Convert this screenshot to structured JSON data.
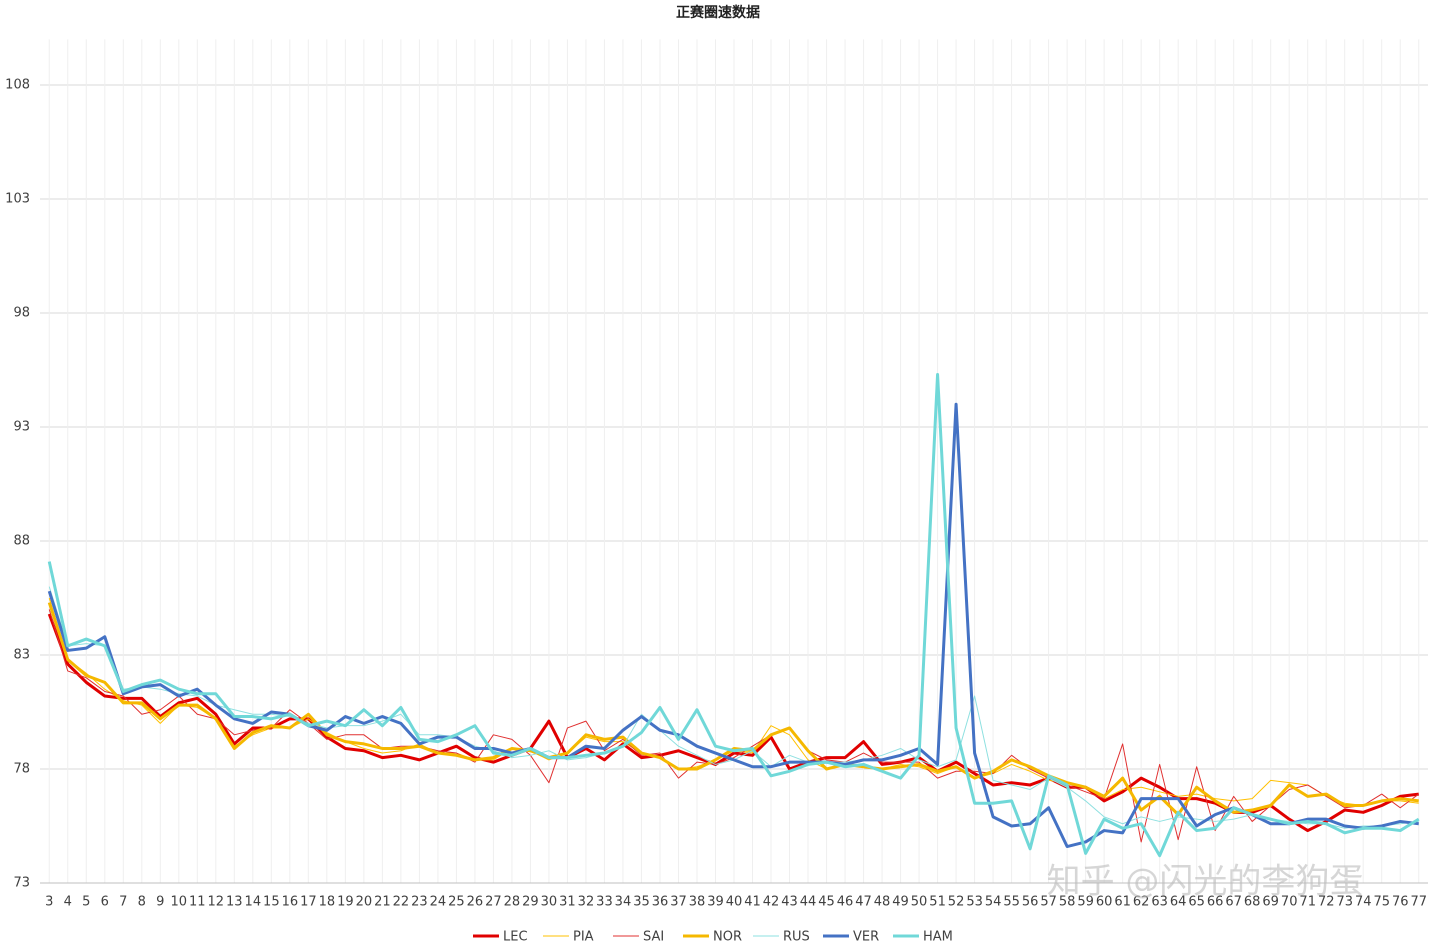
{
  "chart_data": {
    "type": "line",
    "title": "正赛圈速数据",
    "watermark": "知乎 @闪光的李狗蛋",
    "categories": [
      3,
      4,
      5,
      6,
      7,
      8,
      9,
      10,
      11,
      12,
      13,
      14,
      15,
      16,
      17,
      18,
      19,
      20,
      21,
      22,
      23,
      24,
      25,
      26,
      27,
      28,
      29,
      30,
      31,
      32,
      33,
      34,
      35,
      36,
      37,
      38,
      39,
      40,
      41,
      42,
      43,
      44,
      45,
      46,
      47,
      48,
      49,
      50,
      51,
      52,
      53,
      54,
      55,
      56,
      57,
      58,
      59,
      60,
      61,
      62,
      63,
      64,
      65,
      66,
      67,
      68,
      69,
      70,
      71,
      72,
      73,
      74,
      75,
      76,
      77
    ],
    "ylim": [
      73,
      110
    ],
    "yticks": [
      73,
      78,
      83,
      88,
      93,
      98,
      103,
      108
    ],
    "grid": true,
    "legend": "bottom",
    "series": [
      {
        "name": "LEC",
        "color": "#e00000",
        "width": 3,
        "values": [
          84.8,
          82.6,
          81.8,
          81.2,
          81.1,
          81.1,
          80.3,
          80.9,
          81.1,
          80.4,
          79.1,
          79.8,
          79.8,
          80.2,
          80.2,
          79.4,
          78.9,
          78.8,
          78.5,
          78.6,
          78.4,
          78.7,
          79,
          78.5,
          78.3,
          78.6,
          78.9,
          80.1,
          78.5,
          78.9,
          78.4,
          79.1,
          78.5,
          78.6,
          78.8,
          78.5,
          78.2,
          78.7,
          78.6,
          79.4,
          78,
          78.3,
          78.5,
          78.5,
          79.2,
          78.2,
          78.3,
          78.5,
          77.9,
          78.3,
          77.8,
          77.3,
          77.4,
          77.3,
          77.6,
          77.2,
          77.2,
          76.6,
          77,
          77.6,
          77.2,
          76.7,
          76.7,
          76.5,
          76.1,
          76.1,
          76.4,
          75.8,
          75.3,
          75.7,
          76.2,
          76.1,
          76.4,
          76.8,
          76.9
        ]
      },
      {
        "name": "PIA",
        "color": "#ffc000",
        "width": 1,
        "values": [
          85.5,
          82.8,
          82.2,
          81.5,
          81,
          80.8,
          80,
          80.8,
          80.7,
          80.2,
          79,
          79.5,
          79.8,
          79.8,
          80.2,
          79.6,
          79.2,
          78.9,
          78.7,
          78.8,
          79.1,
          78.7,
          78.7,
          78.4,
          78.4,
          78.9,
          78.8,
          78.4,
          78.7,
          79.4,
          79.2,
          79.2,
          78.7,
          78.5,
          78,
          78.1,
          78.4,
          78.8,
          78.7,
          79.9,
          79.5,
          78.4,
          78,
          78.2,
          78.1,
          78,
          78.2,
          78.1,
          77.8,
          78.1,
          77.6,
          77.8,
          78.2,
          77.9,
          77.5,
          77.4,
          77.2,
          76.7,
          77.1,
          77.2,
          77,
          76.8,
          76.9,
          76.7,
          76.6,
          76.7,
          77.5,
          77.4,
          77.3,
          76.8,
          76.5,
          76.4,
          76.6,
          76.6,
          76.5
        ]
      },
      {
        "name": "SAI",
        "color": "#e03030",
        "width": 1,
        "values": [
          85,
          82.3,
          82,
          81.4,
          81.2,
          80.4,
          80.6,
          81.2,
          80.4,
          80.2,
          79.5,
          79.7,
          79.8,
          80.6,
          80,
          79.3,
          79.5,
          79.5,
          78.9,
          79,
          79,
          78.8,
          78.7,
          78.3,
          79.5,
          79.3,
          78.6,
          77.4,
          79.8,
          80.1,
          78.8,
          79.3,
          78.6,
          78.7,
          77.6,
          78.3,
          78.2,
          78.5,
          79,
          79.5,
          79.8,
          78.8,
          78.4,
          78.3,
          78.7,
          78.3,
          78.3,
          78.3,
          77.6,
          77.9,
          77.9,
          77.8,
          78.6,
          78,
          77.6,
          77.3,
          77,
          76.7,
          79.1,
          74.8,
          78.2,
          74.9,
          78.1,
          75.3,
          76.8,
          75.7,
          76.4,
          77.1,
          77.3,
          76.8,
          76.3,
          76.4,
          76.9,
          76.3,
          76.9
        ]
      },
      {
        "name": "NOR",
        "color": "#f5b800",
        "width": 3,
        "values": [
          85.3,
          82.8,
          82.1,
          81.8,
          80.9,
          80.9,
          80.2,
          80.8,
          80.8,
          80.2,
          78.9,
          79.6,
          79.9,
          79.8,
          80.4,
          79.5,
          79.2,
          79.1,
          78.9,
          78.9,
          79,
          78.7,
          78.6,
          78.4,
          78.5,
          78.9,
          78.8,
          78.5,
          78.7,
          79.5,
          79.3,
          79.4,
          78.7,
          78.5,
          78,
          78,
          78.4,
          78.9,
          78.8,
          79.5,
          79.8,
          78.8,
          78,
          78.2,
          78.1,
          78,
          78.1,
          78.2,
          77.9,
          78.1,
          77.6,
          77.9,
          78.4,
          78.1,
          77.7,
          77.4,
          77.2,
          76.8,
          77.6,
          76.2,
          76.8,
          76,
          77.2,
          76.6,
          76.1,
          76.2,
          76.4,
          77.3,
          76.8,
          76.9,
          76.4,
          76.4,
          76.6,
          76.7,
          76.6
        ]
      },
      {
        "name": "RUS",
        "color": "#8ee0e0",
        "width": 1,
        "values": [
          86,
          83.4,
          83.5,
          83.4,
          81.5,
          81.6,
          81.5,
          81.3,
          81.2,
          80.8,
          80.6,
          80.4,
          80.4,
          80.3,
          80,
          79.8,
          79.9,
          79.9,
          80.1,
          80.4,
          79.5,
          79.5,
          79.4,
          79,
          78.8,
          78.5,
          78.6,
          78.8,
          78.4,
          78.5,
          78.7,
          79,
          80.4,
          79.7,
          79,
          78.6,
          78.2,
          78.4,
          78.8,
          78.1,
          78.6,
          78.3,
          78.3,
          78.3,
          78.4,
          78.6,
          78.9,
          78.4,
          78.1,
          78.4,
          81.2,
          77.5,
          77.3,
          77.1,
          77.6,
          77.2,
          76.6,
          75.9,
          75.6,
          75.9,
          75.7,
          75.9,
          75.8,
          75.7,
          75.8,
          76,
          75.8,
          75.7,
          75.6,
          75.6,
          75.4,
          75.5,
          75.5,
          75.6,
          75.7
        ]
      },
      {
        "name": "VER",
        "color": "#4472c4",
        "width": 3,
        "values": [
          85.8,
          83.2,
          83.3,
          83.8,
          81.3,
          81.6,
          81.7,
          81.2,
          81.5,
          80.8,
          80.2,
          80,
          80.5,
          80.4,
          79.9,
          79.7,
          80.3,
          80,
          80.3,
          80,
          79.1,
          79.4,
          79.4,
          78.9,
          78.9,
          78.7,
          78.9,
          78.5,
          78.5,
          79,
          78.9,
          79.7,
          80.3,
          79.7,
          79.5,
          79,
          78.7,
          78.4,
          78.1,
          78.1,
          78.3,
          78.3,
          78.3,
          78.2,
          78.4,
          78.4,
          78.6,
          78.9,
          78.2,
          94,
          78.7,
          75.9,
          75.5,
          75.6,
          76.3,
          74.6,
          74.8,
          75.3,
          75.2,
          76.7,
          76.7,
          76.7,
          75.5,
          76,
          76.3,
          76,
          75.6,
          75.6,
          75.8,
          75.8,
          75.5,
          75.4,
          75.5,
          75.7,
          75.6
        ]
      },
      {
        "name": "HAM",
        "color": "#70d8d8",
        "width": 3,
        "values": [
          87.1,
          83.4,
          83.7,
          83.4,
          81.4,
          81.7,
          81.9,
          81.5,
          81.3,
          81.3,
          80.3,
          80.3,
          80.2,
          80.4,
          79.9,
          80.1,
          79.9,
          80.6,
          79.9,
          80.7,
          79.3,
          79.2,
          79.5,
          79.9,
          78.7,
          78.6,
          78.9,
          78.5,
          78.5,
          78.6,
          78.7,
          79,
          79.6,
          80.7,
          79.3,
          80.6,
          79,
          78.8,
          78.9,
          77.7,
          77.9,
          78.2,
          78.3,
          78.1,
          78.2,
          77.9,
          77.6,
          78.6,
          95.3,
          79.8,
          76.5,
          76.5,
          76.6,
          74.5,
          77.7,
          77.3,
          74.3,
          75.8,
          75.4,
          75.6,
          74.2,
          76.1,
          75.3,
          75.4,
          76.3,
          76,
          75.8,
          75.6,
          75.7,
          75.6,
          75.2,
          75.4,
          75.4,
          75.3,
          75.8
        ]
      }
    ]
  }
}
